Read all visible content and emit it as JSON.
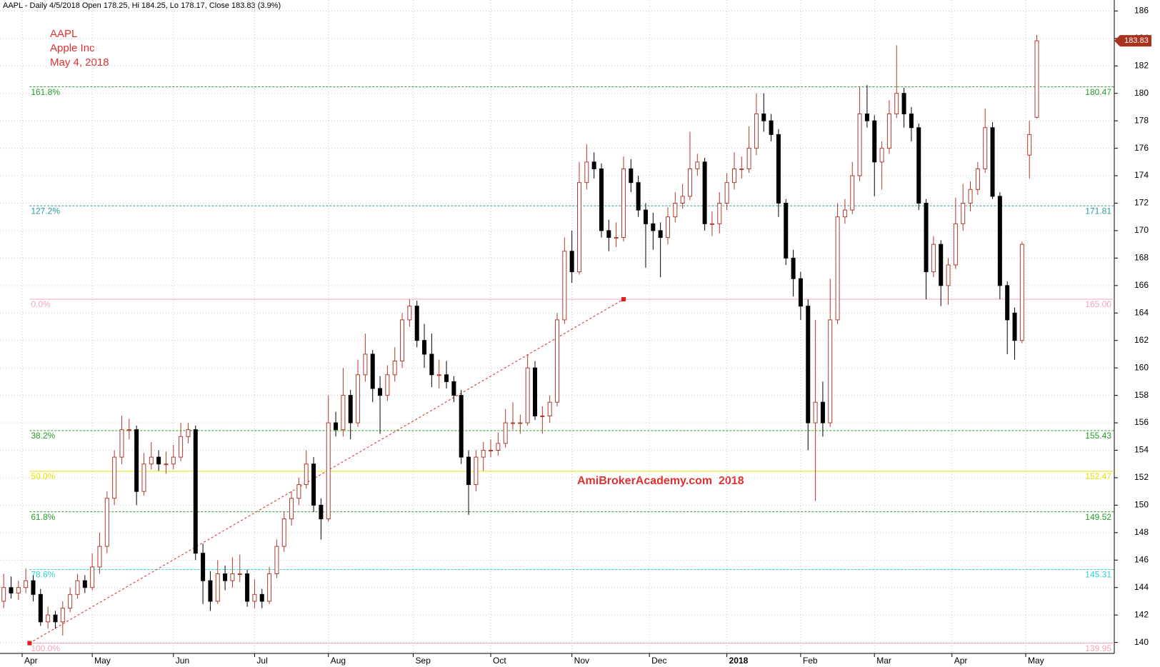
{
  "chart_data": {
    "type": "candlestick",
    "header": "AAPL - Daily 4/5/2018 Open 178.25, Hi 184.25, Lo 178.17, Close 183.83 (3.9%)",
    "annotations": [
      "AAPL",
      "Apple Inc",
      "May 4, 2018"
    ],
    "watermark": "AmiBrokerAcademy.com  2018",
    "up_color": "#b03a2e",
    "down_color": "#000000",
    "xlim": [
      -0.5,
      150.5
    ],
    "xticks": [
      {
        "value": 2.5,
        "label": "Apr"
      },
      {
        "value": 12,
        "label": "May"
      },
      {
        "value": 23,
        "label": "Jun"
      },
      {
        "value": 34,
        "label": "Jul"
      },
      {
        "value": 44,
        "label": "Aug"
      },
      {
        "value": 55.5,
        "label": "Sep"
      },
      {
        "value": 66,
        "label": "Oct"
      },
      {
        "value": 77,
        "label": "Nov"
      },
      {
        "value": 87.5,
        "label": "Dec"
      },
      {
        "value": 98,
        "label": "2018"
      },
      {
        "value": 108,
        "label": "Feb"
      },
      {
        "value": 118,
        "label": "Mar"
      },
      {
        "value": 128.5,
        "label": "Apr"
      },
      {
        "value": 138.5,
        "label": "May"
      }
    ],
    "ylim": [
      139.2,
      186.8
    ],
    "yticks": [
      140,
      142,
      144,
      146,
      148,
      150,
      152,
      154,
      156,
      158,
      160,
      162,
      164,
      166,
      168,
      170,
      172,
      174,
      176,
      178,
      180,
      182,
      184,
      186
    ],
    "grid": true,
    "last_price": 183.83,
    "fib_levels": [
      {
        "label": "161.8%",
        "value": 180.47,
        "color": "#2a9a2a",
        "dash": true
      },
      {
        "label": "127.2%",
        "value": 171.81,
        "color": "#2a9a9a",
        "dash": true
      },
      {
        "label": "0.0%",
        "value": 165,
        "value_label": "165.00",
        "color": "#f4a6b8",
        "dash": false
      },
      {
        "label": "38.2%",
        "value": 155.43,
        "color": "#2a9a2a",
        "dash": true
      },
      {
        "label": "50.0%",
        "value": 152.47,
        "color": "#e8e000",
        "dash": false
      },
      {
        "label": "61.8%",
        "value": 149.52,
        "color": "#2a9a2a",
        "dash": true
      },
      {
        "label": "78.6%",
        "value": 145.31,
        "color": "#30d0d0",
        "dash": true
      },
      {
        "label": "100.0%",
        "value": 139.95,
        "color": "#f4a6b8",
        "dash": false
      }
    ],
    "trendline": {
      "x": [
        3.5,
        84
      ],
      "y": [
        139.95,
        165
      ],
      "color": "#e02020"
    },
    "ohlc": [
      [
        143,
        145,
        142.5,
        144
      ],
      [
        144,
        144.8,
        143.2,
        143.6
      ],
      [
        143.6,
        144.5,
        143.1,
        144
      ],
      [
        144,
        145.4,
        143.6,
        144.5
      ],
      [
        144.5,
        144.9,
        143,
        143.5
      ],
      [
        143.5,
        143.9,
        141.2,
        141.5
      ],
      [
        141.5,
        142.6,
        141,
        142
      ],
      [
        142,
        142.3,
        141,
        141.5
      ],
      [
        141.5,
        143,
        140.5,
        142.5
      ],
      [
        142.5,
        144,
        142.2,
        143.5
      ],
      [
        143.5,
        145,
        143.2,
        144.5
      ],
      [
        144.5,
        144.9,
        143.6,
        144
      ],
      [
        144,
        146.5,
        143.8,
        145.5
      ],
      [
        145.5,
        148,
        145,
        147
      ],
      [
        147,
        151,
        146.5,
        150.5
      ],
      [
        150.5,
        154,
        150,
        153.5
      ],
      [
        153.5,
        156.5,
        153,
        155.5
      ],
      [
        155.5,
        156.3,
        154.8,
        155.5
      ],
      [
        155.5,
        155.8,
        150,
        151
      ],
      [
        151,
        153.8,
        150.7,
        153
      ],
      [
        153,
        154.6,
        152.6,
        153.5
      ],
      [
        153.5,
        154,
        152.5,
        153
      ],
      [
        153,
        153.9,
        152.3,
        153
      ],
      [
        153,
        154.4,
        152.6,
        153.5
      ],
      [
        153.5,
        156,
        153.2,
        155
      ],
      [
        155,
        156,
        154.5,
        155.5
      ],
      [
        155.5,
        155.8,
        146,
        146.5
      ],
      [
        146.5,
        147.2,
        142.8,
        144.5
      ],
      [
        144.5,
        145.2,
        142.3,
        143
      ],
      [
        143,
        146,
        142.8,
        145
      ],
      [
        145,
        145.6,
        143.8,
        144.5
      ],
      [
        144.5,
        146.2,
        144,
        145
      ],
      [
        145,
        146.4,
        144.4,
        145
      ],
      [
        145,
        145.3,
        142.6,
        143
      ],
      [
        143,
        144.6,
        142.5,
        143.5
      ],
      [
        143.5,
        143.9,
        142.5,
        143
      ],
      [
        143,
        145.5,
        142.8,
        145
      ],
      [
        145,
        147.5,
        144.7,
        147
      ],
      [
        147,
        149.5,
        146.6,
        149
      ],
      [
        149,
        151,
        148.5,
        150.5
      ],
      [
        150.5,
        152,
        150,
        151.5
      ],
      [
        151.5,
        154,
        151.2,
        153
      ],
      [
        153,
        153.5,
        149.5,
        150
      ],
      [
        150,
        150.5,
        147.5,
        149
      ],
      [
        149,
        158,
        148.8,
        156
      ],
      [
        156,
        156.8,
        155,
        155.5
      ],
      [
        155.5,
        160,
        155,
        158
      ],
      [
        158,
        158.4,
        154.8,
        156
      ],
      [
        156,
        160.6,
        155.7,
        159.5
      ],
      [
        159.5,
        162.5,
        159,
        161
      ],
      [
        161,
        161.3,
        157.5,
        158.5
      ],
      [
        158.5,
        159.4,
        155.2,
        158
      ],
      [
        158,
        160.2,
        157.6,
        159.5
      ],
      [
        159.5,
        161.5,
        159,
        160.5
      ],
      [
        160.5,
        164,
        160,
        163.5
      ],
      [
        163.5,
        165,
        163,
        164.5
      ],
      [
        164.5,
        164.9,
        161.5,
        162
      ],
      [
        162,
        163.2,
        160,
        161
      ],
      [
        161,
        162.5,
        158.6,
        159.5
      ],
      [
        159.5,
        160.6,
        158.5,
        159.5
      ],
      [
        159.5,
        160.5,
        158.5,
        159
      ],
      [
        159,
        159.4,
        157.5,
        158
      ],
      [
        158,
        158.4,
        153,
        153.5
      ],
      [
        153.5,
        154,
        149.3,
        151.5
      ],
      [
        151.5,
        154,
        151,
        153.5
      ],
      [
        153.5,
        154.6,
        152.5,
        154
      ],
      [
        154,
        154.8,
        153.5,
        154
      ],
      [
        154,
        155.3,
        153.6,
        154.5
      ],
      [
        154.5,
        157,
        154.2,
        156
      ],
      [
        156,
        157.5,
        155.5,
        156
      ],
      [
        156,
        156.6,
        155.2,
        156
      ],
      [
        156,
        161,
        155.8,
        160
      ],
      [
        160,
        160.5,
        156.2,
        156.5
      ],
      [
        156.5,
        157.2,
        155.2,
        156.5
      ],
      [
        156.5,
        158,
        156,
        157.5
      ],
      [
        157.5,
        164,
        157.2,
        163.5
      ],
      [
        163.5,
        169.5,
        163.2,
        168.5
      ],
      [
        168.5,
        170,
        166.2,
        167
      ],
      [
        167,
        175,
        166.8,
        173.5
      ],
      [
        173.5,
        176.3,
        173,
        175
      ],
      [
        175,
        175.7,
        173.8,
        174.5
      ],
      [
        174.5,
        174.9,
        169.5,
        170
      ],
      [
        170,
        170.8,
        168.5,
        169.5
      ],
      [
        169.5,
        170.6,
        168.8,
        169.5
      ],
      [
        169.5,
        175.4,
        169.2,
        174.5
      ],
      [
        174.5,
        175.2,
        172.8,
        173.5
      ],
      [
        173.5,
        174,
        171,
        171.5
      ],
      [
        171.5,
        172,
        167.3,
        170.5
      ],
      [
        170.5,
        171.3,
        168.6,
        170
      ],
      [
        170,
        170.6,
        166.6,
        169.5
      ],
      [
        169.5,
        171.7,
        169,
        171
      ],
      [
        171,
        172.8,
        170.6,
        172
      ],
      [
        172,
        173.4,
        171.6,
        172.5
      ],
      [
        172.5,
        177.2,
        172.2,
        174.5
      ],
      [
        174.5,
        175.6,
        174,
        175
      ],
      [
        175,
        175.3,
        170,
        170.5
      ],
      [
        170.5,
        171.4,
        169.6,
        170.5
      ],
      [
        170.5,
        172.8,
        169.8,
        172
      ],
      [
        172,
        174.2,
        171.5,
        173.5
      ],
      [
        173.5,
        175.7,
        173,
        174.5
      ],
      [
        174.5,
        175.4,
        173.8,
        174.5
      ],
      [
        174.5,
        177.6,
        174.2,
        176
      ],
      [
        176,
        180,
        175.5,
        178.5
      ],
      [
        178.5,
        180,
        177.2,
        178
      ],
      [
        178,
        178.5,
        176.5,
        177
      ],
      [
        177,
        177.4,
        171,
        172
      ],
      [
        172,
        172.3,
        167.5,
        168
      ],
      [
        168,
        168.6,
        165.2,
        166.5
      ],
      [
        166.5,
        167,
        163.5,
        164.5
      ],
      [
        164.5,
        165,
        154,
        156
      ],
      [
        156,
        163.5,
        150.3,
        157.5
      ],
      [
        157.5,
        159,
        155,
        156
      ],
      [
        156,
        166.5,
        155.7,
        163.5
      ],
      [
        163.5,
        172,
        163.2,
        171
      ],
      [
        171,
        172.3,
        170.5,
        171.5
      ],
      [
        171.5,
        175,
        171.2,
        174
      ],
      [
        174,
        180.5,
        173.6,
        178.5
      ],
      [
        178.5,
        180.6,
        177.5,
        178
      ],
      [
        178,
        178.4,
        172.5,
        175
      ],
      [
        175,
        176.5,
        173,
        176
      ],
      [
        176,
        179.5,
        175.6,
        178.5
      ],
      [
        178.5,
        183.5,
        178.2,
        180
      ],
      [
        180,
        180.4,
        177.5,
        178.5
      ],
      [
        178.5,
        179,
        176.5,
        177.5
      ],
      [
        177.5,
        177.8,
        171.5,
        172
      ],
      [
        172,
        172.3,
        165,
        167
      ],
      [
        167,
        169.6,
        166.6,
        169
      ],
      [
        169,
        169.3,
        164.5,
        166
      ],
      [
        166,
        168,
        164.6,
        167.5
      ],
      [
        167.5,
        172.4,
        167.2,
        170.5
      ],
      [
        170.5,
        173.4,
        170,
        172
      ],
      [
        172,
        173.6,
        171.4,
        173
      ],
      [
        173,
        175,
        172.6,
        174.5
      ],
      [
        174.5,
        178.9,
        174.2,
        177.5
      ],
      [
        177.5,
        177.9,
        172.3,
        172.5
      ],
      [
        172.5,
        172.8,
        165,
        166
      ],
      [
        166,
        166.3,
        161,
        163.5
      ],
      [
        164,
        164.4,
        160.6,
        162
      ],
      [
        162,
        169.2,
        161.8,
        169
      ],
      [
        175.5,
        178,
        173.8,
        177
      ],
      [
        178.25,
        184.25,
        178.17,
        183.83
      ]
    ]
  }
}
